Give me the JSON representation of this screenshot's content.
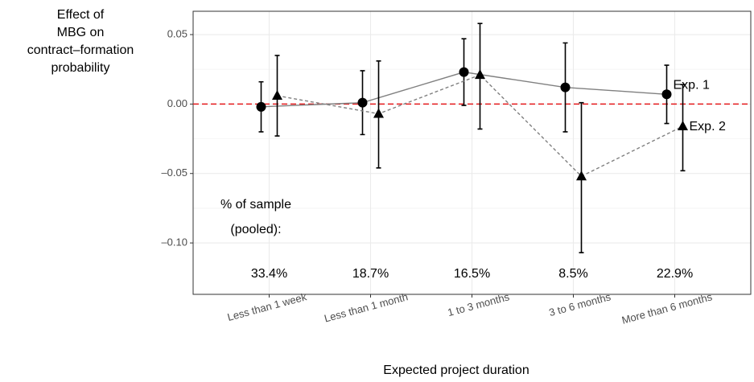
{
  "chart_data": {
    "type": "errorbar",
    "ylabel": [
      "Effect of",
      "MBG on",
      "contract–formation",
      "probability"
    ],
    "xlabel": "Expected project duration",
    "categories": [
      "Less than 1 week",
      "Less than 1 month",
      "1 to 3 months",
      "3 to 6 months",
      "More than 6 months"
    ],
    "ylim": [
      -0.137,
      0.0668
    ],
    "yticks": [
      {
        "value": 0.05,
        "label": "0.05"
      },
      {
        "value": 0,
        "label": "0.00"
      },
      {
        "value": -0.05,
        "label": "–0.05"
      },
      {
        "value": -0.1,
        "label": "–0.10"
      }
    ],
    "grid": true,
    "reference_line": {
      "value": 0,
      "color": "#e41a1c"
    },
    "series": [
      {
        "name": "Exp. 1",
        "color": "#000000",
        "line_color": "#808080",
        "marker": "circle",
        "dash": false,
        "values": [
          -0.002,
          0.001,
          0.023,
          0.012,
          0.007
        ],
        "lower": [
          -0.02,
          -0.022,
          -0.001,
          -0.02,
          -0.014
        ],
        "upper": [
          0.016,
          0.024,
          0.047,
          0.044,
          0.028
        ]
      },
      {
        "name": "Exp. 2",
        "color": "#000000",
        "line_color": "#808080",
        "marker": "triangle",
        "dash": true,
        "values": [
          0.006,
          -0.007,
          0.021,
          -0.052,
          -0.016
        ],
        "lower": [
          -0.023,
          -0.046,
          -0.018,
          -0.107,
          -0.048
        ],
        "upper": [
          0.035,
          0.031,
          0.058,
          0.001,
          0.014
        ]
      }
    ],
    "annotations": {
      "sample_title": [
        "% of sample",
        "(pooled):"
      ],
      "sample_shares": [
        "33.4%",
        "18.7%",
        "16.5%",
        "8.5%",
        "22.9%"
      ]
    }
  }
}
